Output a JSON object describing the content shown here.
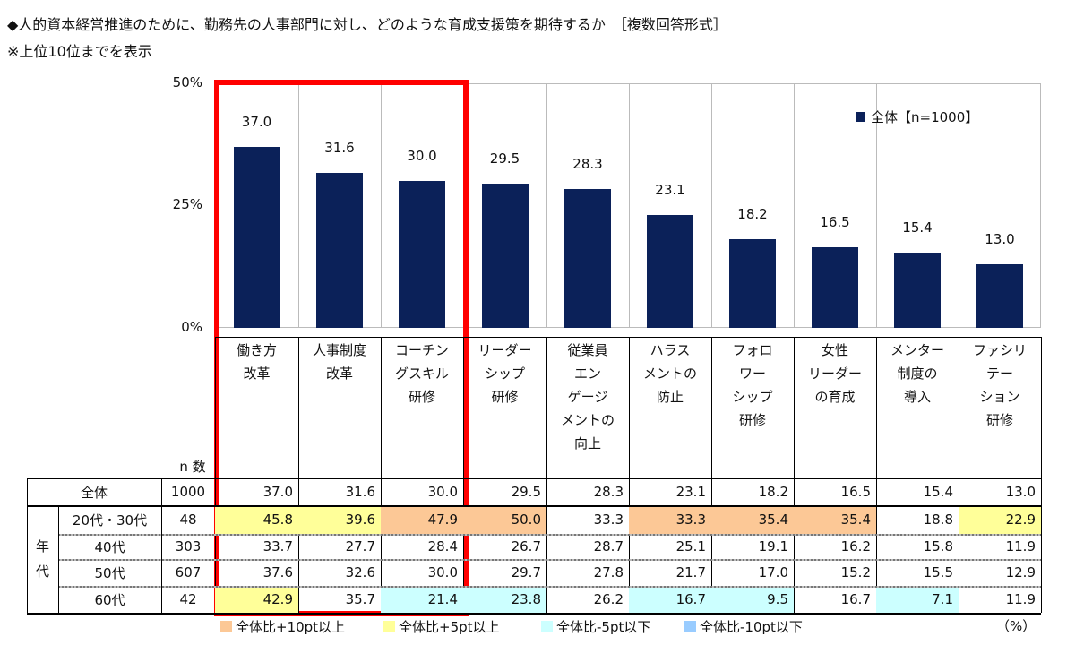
{
  "title": "◆人的資本経営推進のために、勤務先の人事部門に対し、どのような育成支援策を期待するか　［複数回答形式］",
  "note": "※上位10位までを表示",
  "chart_data": {
    "type": "bar",
    "title": "人的資本経営推進のために、勤務先の人事部門に対し、どのような育成支援策を期待するか",
    "categories": [
      "働き方\n改革",
      "人事制度\n改革",
      "コーチン\nグスキル\n研修",
      "リーダー\nシップ\n研修",
      "従業員\nエン\nゲージ\nメントの\n向上",
      "ハラス\nメントの\n防止",
      "フォロ\nワー\nシップ\n研修",
      "女性\nリーダー\nの育成",
      "メンター\n制度の\n導入",
      "ファシリ\nテー\nション\n研修"
    ],
    "series": [
      {
        "name": "全体【n=1000】",
        "values": [
          37.0,
          31.6,
          30.0,
          29.5,
          28.3,
          23.1,
          18.2,
          16.5,
          15.4,
          13.0
        ]
      }
    ],
    "yticks": [
      "50%",
      "25%",
      "0%"
    ],
    "ylim": [
      0,
      50
    ],
    "legend": "top-right",
    "color": "#0b2159"
  },
  "table": {
    "n_header": "n 数",
    "group_label": "年\n代",
    "rows": [
      {
        "label": "全体",
        "n": "1000",
        "values": [
          "37.0",
          "31.6",
          "30.0",
          "29.5",
          "28.3",
          "23.1",
          "18.2",
          "16.5",
          "15.4",
          "13.0"
        ],
        "hl": [
          "",
          "",
          "",
          "",
          "",
          "",
          "",
          "",
          "",
          ""
        ]
      },
      {
        "label": "20代・30代",
        "n": "48",
        "values": [
          "45.8",
          "39.6",
          "47.9",
          "50.0",
          "33.3",
          "33.3",
          "35.4",
          "35.4",
          "18.8",
          "22.9"
        ],
        "hl": [
          "y",
          "y",
          "o",
          "o",
          "",
          "o",
          "o",
          "o",
          "",
          "y"
        ]
      },
      {
        "label": "40代",
        "n": "303",
        "values": [
          "33.7",
          "27.7",
          "28.4",
          "26.7",
          "28.7",
          "25.1",
          "19.1",
          "16.2",
          "15.8",
          "11.9"
        ],
        "hl": [
          "",
          "",
          "",
          "",
          "",
          "",
          "",
          "",
          "",
          ""
        ]
      },
      {
        "label": "50代",
        "n": "607",
        "values": [
          "37.6",
          "32.6",
          "30.0",
          "29.7",
          "27.8",
          "21.7",
          "17.0",
          "15.2",
          "15.5",
          "12.9"
        ],
        "hl": [
          "",
          "",
          "",
          "",
          "",
          "",
          "",
          "",
          "",
          ""
        ]
      },
      {
        "label": "60代",
        "n": "42",
        "values": [
          "42.9",
          "35.7",
          "21.4",
          "23.8",
          "26.2",
          "16.7",
          "9.5",
          "16.7",
          "7.1",
          "11.9"
        ],
        "hl": [
          "y",
          "",
          "c",
          "c",
          "",
          "c",
          "c",
          "",
          "c",
          ""
        ]
      }
    ]
  },
  "highlight_colors": {
    "o": "#fcc896",
    "y": "#ffff99",
    "c": "#ccffff",
    "b": "#99ccff"
  },
  "keys": [
    {
      "label": "全体比+10pt以上",
      "c": "o"
    },
    {
      "label": "全体比+5pt以上",
      "c": "y"
    },
    {
      "label": "全体比-5pt以下",
      "c": "c"
    },
    {
      "label": "全体比-10pt以下",
      "c": "b"
    }
  ],
  "unit": "（%）"
}
